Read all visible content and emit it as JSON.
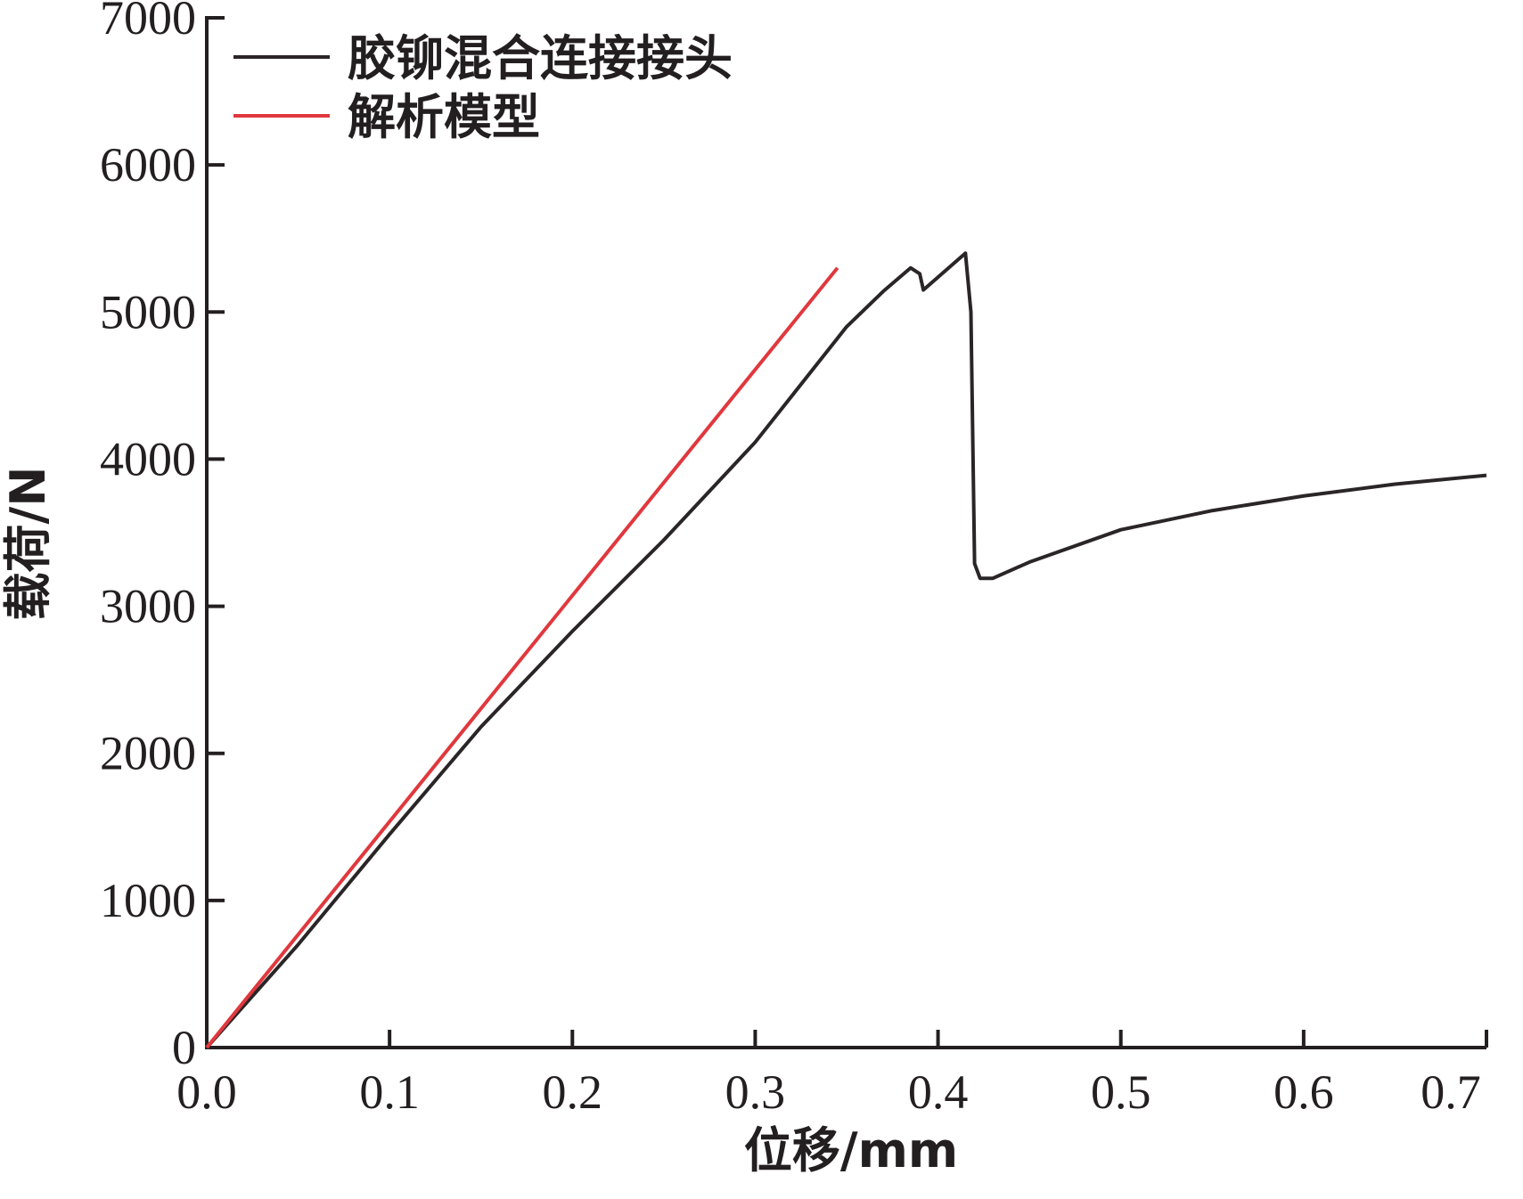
{
  "chart_data": {
    "type": "line",
    "xlabel": "位移/mm",
    "ylabel": "载荷/N",
    "xlim": [
      0,
      0.7
    ],
    "ylim": [
      0,
      7000
    ],
    "xticks": [
      {
        "value": 0,
        "label": "0.0"
      },
      0.1,
      0.2,
      0.3,
      0.4,
      0.5,
      0.6,
      0.7
    ],
    "yticks": [
      0,
      1000,
      2000,
      3000,
      4000,
      5000,
      6000,
      7000
    ],
    "legend": "upper left",
    "series": [
      {
        "name": "胶铆混合连接接头",
        "color": "#2a2526",
        "x": [
          0,
          0.05,
          0.1,
          0.15,
          0.2,
          0.25,
          0.3,
          0.35,
          0.37,
          0.385,
          0.39,
          0.392,
          0.415,
          0.418,
          0.42,
          0.423,
          0.43,
          0.45,
          0.5,
          0.55,
          0.6,
          0.65,
          0.7
        ],
        "values": [
          0,
          700,
          1450,
          2180,
          2830,
          3450,
          4115,
          4900,
          5140,
          5300,
          5260,
          5150,
          5400,
          5000,
          3290,
          3190,
          3190,
          3300,
          3520,
          3650,
          3750,
          3830,
          3890
        ]
      },
      {
        "name": "解析模型",
        "color": "#e0383e",
        "x": [
          0,
          0.345
        ],
        "values": [
          0,
          5300
        ]
      }
    ]
  }
}
